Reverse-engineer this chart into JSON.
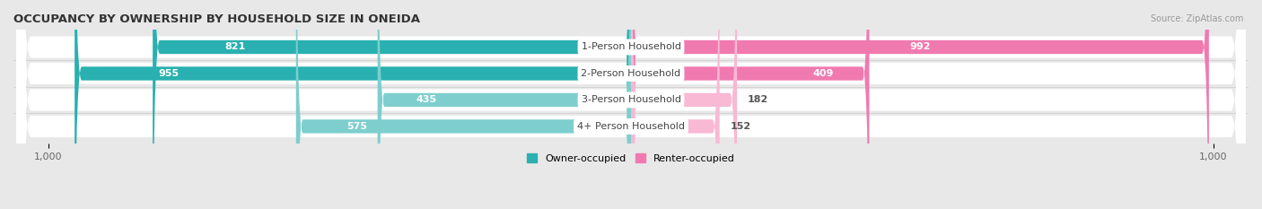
{
  "title": "OCCUPANCY BY OWNERSHIP BY HOUSEHOLD SIZE IN ONEIDA",
  "source": "Source: ZipAtlas.com",
  "categories": [
    "1-Person Household",
    "2-Person Household",
    "3-Person Household",
    "4+ Person Household"
  ],
  "owner_values": [
    821,
    955,
    435,
    575
  ],
  "renter_values": [
    992,
    409,
    182,
    152
  ],
  "owner_color_dark": "#2ab0b0",
  "owner_color_light": "#7ecece",
  "renter_color_dark": "#f07ab0",
  "renter_color_light": "#f9b8d4",
  "axis_max": 1000,
  "bar_height": 0.52,
  "background_color": "#e8e8e8",
  "row_bg_color": "#f5f5f5",
  "row_pill_color": "#ffffff",
  "center_label_bg": "#ffffff",
  "center_label_color": "#444444",
  "value_color_inside": "#ffffff",
  "value_color_outside": "#555555",
  "x_tick_labels": [
    "1,000",
    "1,000"
  ],
  "legend_owner": "Owner-occupied",
  "legend_renter": "Renter-occupied",
  "title_fontsize": 9.5,
  "label_fontsize": 8,
  "category_fontsize": 8
}
